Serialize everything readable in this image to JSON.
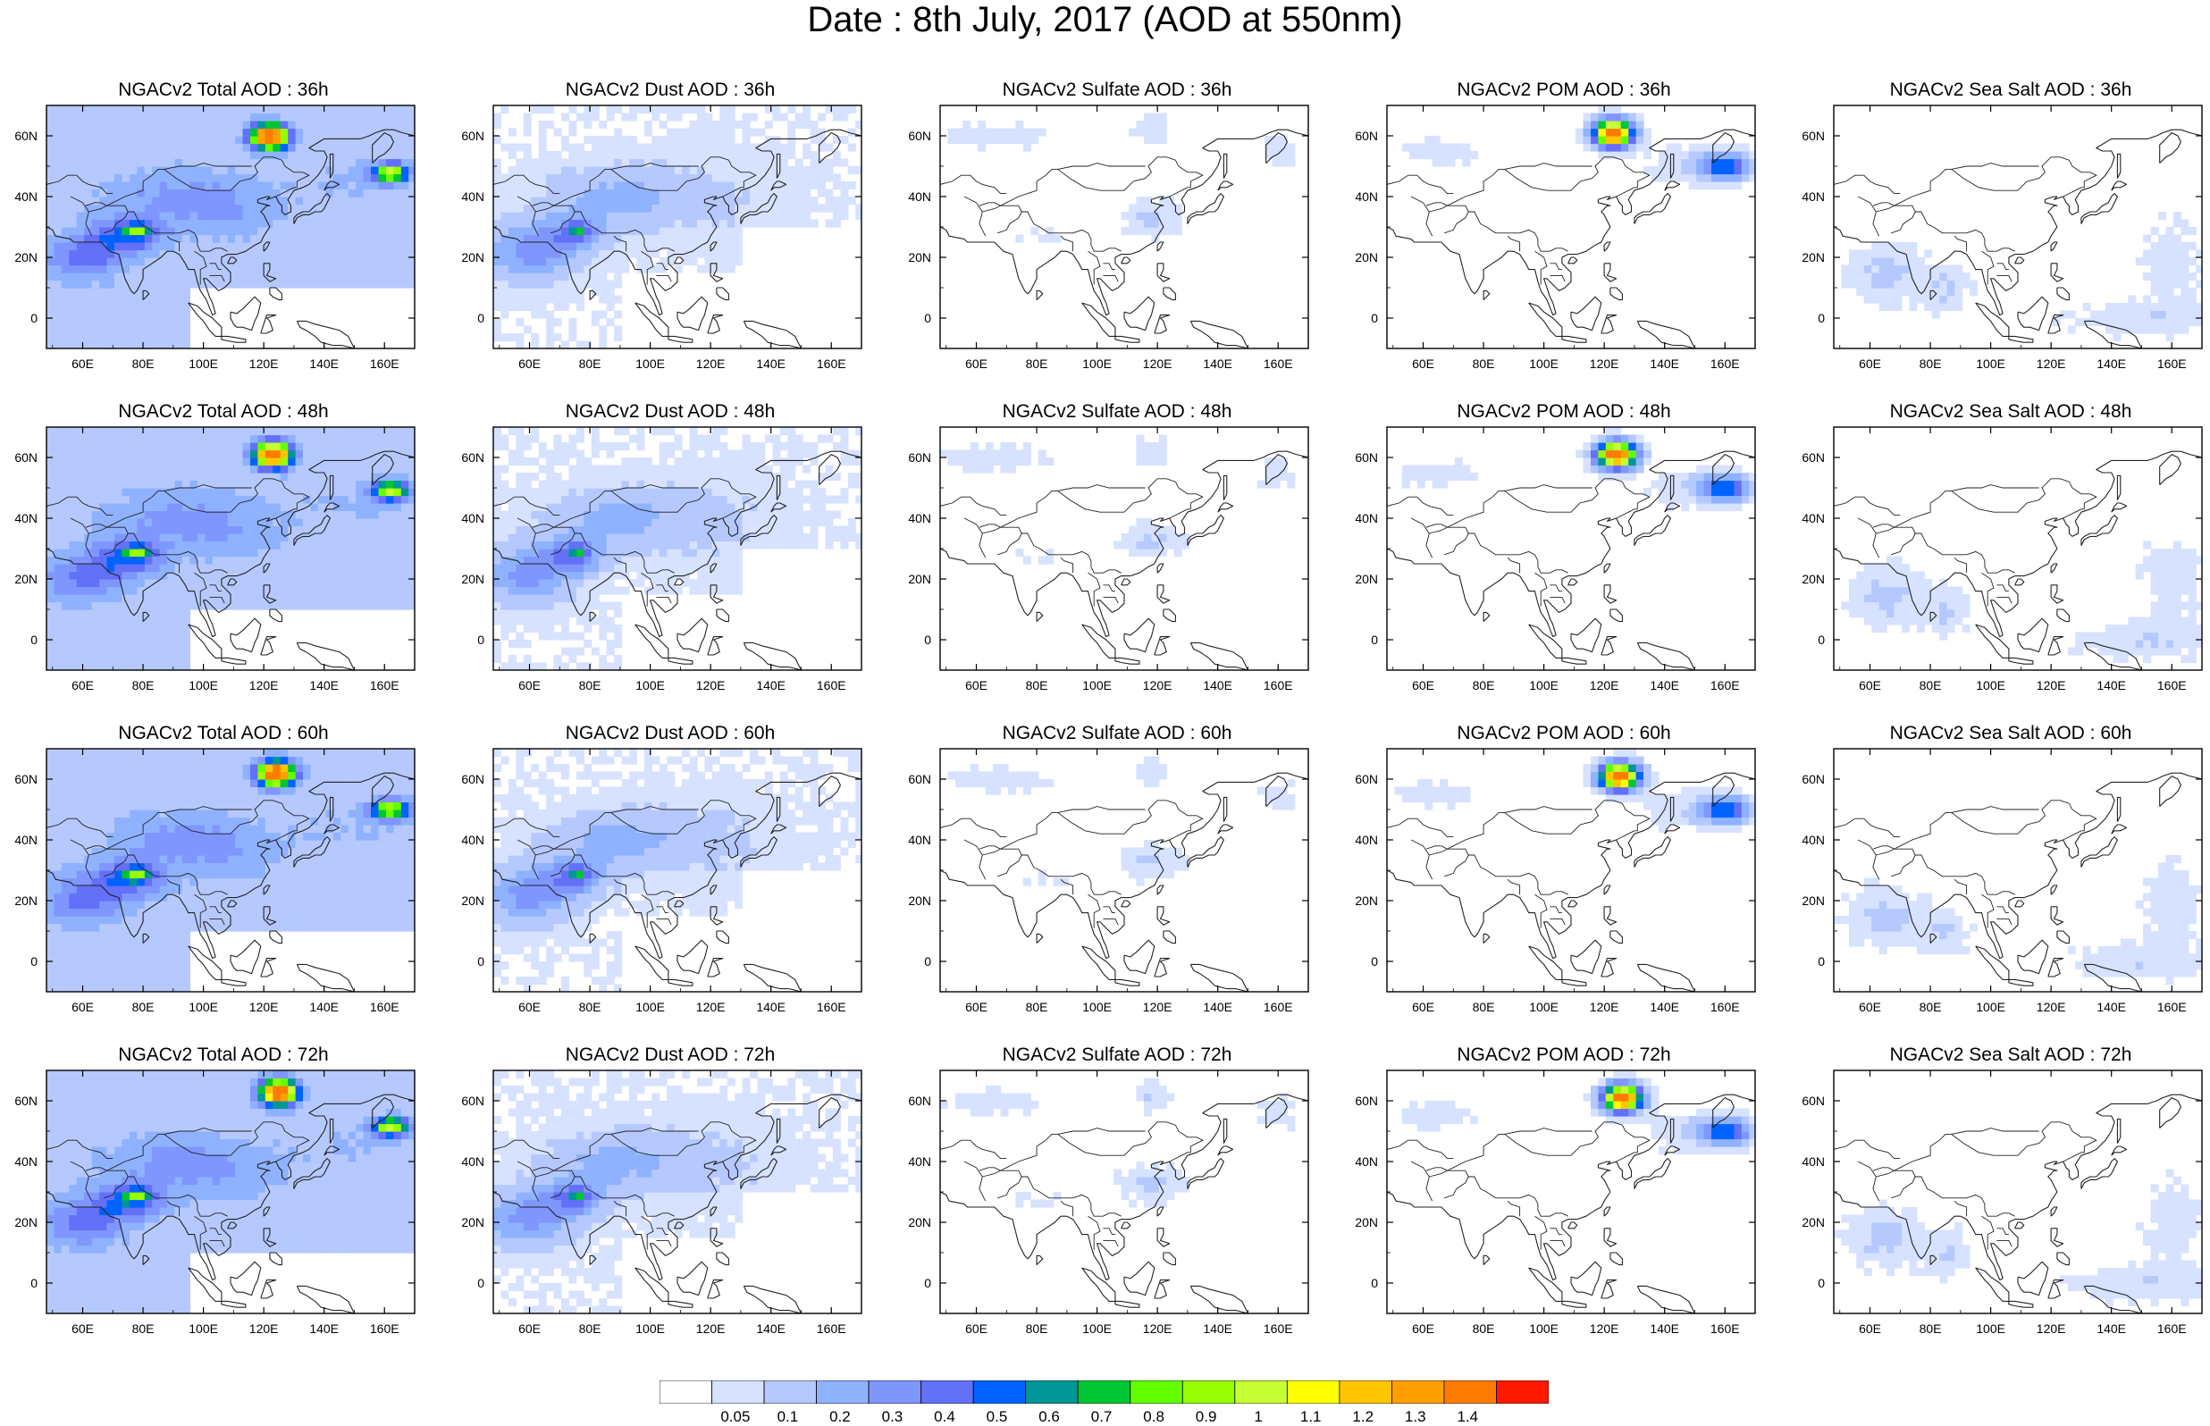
{
  "title": "Date : 8th July, 2017 (AOD at 550nm)",
  "axes": {
    "x_ticks": [
      "60E",
      "80E",
      "100E",
      "120E",
      "140E",
      "160E"
    ],
    "x_values": [
      60,
      80,
      100,
      120,
      140,
      160
    ],
    "y_ticks": [
      "60N",
      "40N",
      "20N",
      "0"
    ],
    "y_values": [
      60,
      40,
      20,
      0
    ],
    "lon_range": [
      48,
      170
    ],
    "lat_range": [
      -10,
      70
    ]
  },
  "panels": [
    {
      "title": "NGACv2 Total AOD : 36h",
      "species": "total",
      "hour": 36
    },
    {
      "title": "NGACv2 Dust AOD : 36h",
      "species": "dust",
      "hour": 36
    },
    {
      "title": "NGACv2 Sulfate AOD : 36h",
      "species": "sulfate",
      "hour": 36
    },
    {
      "title": "NGACv2 POM AOD : 36h",
      "species": "pom",
      "hour": 36
    },
    {
      "title": "NGACv2 Sea Salt AOD : 36h",
      "species": "seasalt",
      "hour": 36
    },
    {
      "title": "NGACv2 Total AOD : 48h",
      "species": "total",
      "hour": 48
    },
    {
      "title": "NGACv2 Dust AOD : 48h",
      "species": "dust",
      "hour": 48
    },
    {
      "title": "NGACv2 Sulfate AOD : 48h",
      "species": "sulfate",
      "hour": 48
    },
    {
      "title": "NGACv2 POM AOD : 48h",
      "species": "pom",
      "hour": 48
    },
    {
      "title": "NGACv2 Sea Salt AOD : 48h",
      "species": "seasalt",
      "hour": 48
    },
    {
      "title": "NGACv2 Total AOD : 60h",
      "species": "total",
      "hour": 60
    },
    {
      "title": "NGACv2 Dust AOD : 60h",
      "species": "dust",
      "hour": 60
    },
    {
      "title": "NGACv2 Sulfate AOD : 60h",
      "species": "sulfate",
      "hour": 60
    },
    {
      "title": "NGACv2 POM AOD : 60h",
      "species": "pom",
      "hour": 60
    },
    {
      "title": "NGACv2 Sea Salt AOD : 60h",
      "species": "seasalt",
      "hour": 60
    },
    {
      "title": "NGACv2 Total AOD : 72h",
      "species": "total",
      "hour": 72
    },
    {
      "title": "NGACv2 Dust AOD : 72h",
      "species": "dust",
      "hour": 72
    },
    {
      "title": "NGACv2 Sulfate AOD : 72h",
      "species": "sulfate",
      "hour": 72
    },
    {
      "title": "NGACv2 POM AOD : 72h",
      "species": "pom",
      "hour": 72
    },
    {
      "title": "NGACv2 Sea Salt  AOD : 72h",
      "species": "seasalt",
      "hour": 72
    }
  ],
  "colorbar": {
    "labels": [
      "0.05",
      "0.1",
      "0.2",
      "0.3",
      "0.4",
      "0.5",
      "0.6",
      "0.7",
      "0.8",
      "0.9",
      "1",
      "1.1",
      "1.2",
      "1.3",
      "1.4"
    ],
    "colors": [
      "#ffffff",
      "#d6e2ff",
      "#b5c9ff",
      "#8eb2ff",
      "#7f96ff",
      "#6370f8",
      "#0063ff",
      "#009696",
      "#00c633",
      "#63ff00",
      "#96ff00",
      "#c6ff33",
      "#ffff00",
      "#ffc600",
      "#ffa000",
      "#ff7c00",
      "#ff1900"
    ]
  }
}
